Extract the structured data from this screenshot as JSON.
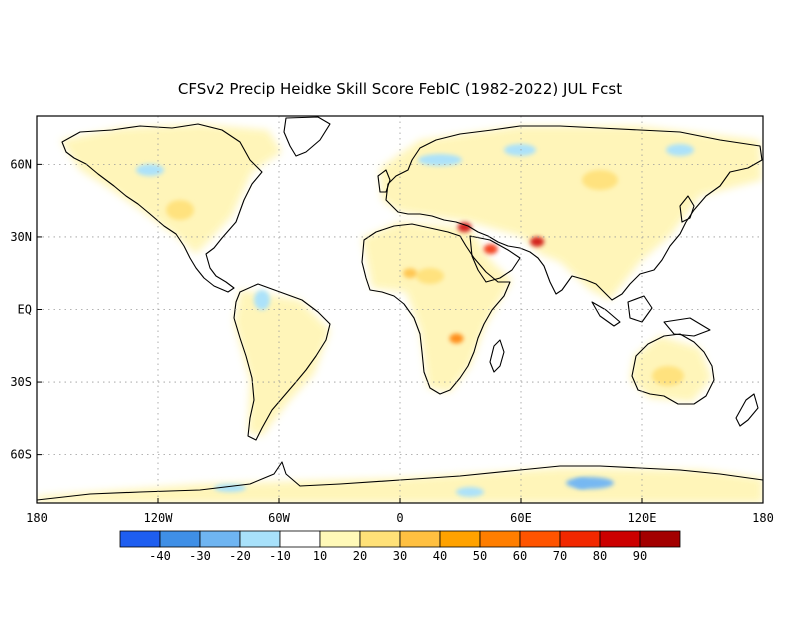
{
  "title": "CFSv2 Precip Heidke Skill Score FebIC (1982-2022) JUL Fcst",
  "map": {
    "projection": "equirectangular",
    "lon_range": [
      -180,
      180
    ],
    "lat_range": [
      -80,
      80
    ],
    "lat_ticks": [
      {
        "lat": 60,
        "label": "60N"
      },
      {
        "lat": 30,
        "label": "30N"
      },
      {
        "lat": 0,
        "label": "EQ"
      },
      {
        "lat": -30,
        "label": "30S"
      },
      {
        "lat": -60,
        "label": "60S"
      }
    ],
    "lon_ticks": [
      {
        "lon": -180,
        "label": "180"
      },
      {
        "lon": -120,
        "label": "120W"
      },
      {
        "lon": -60,
        "label": "60W"
      },
      {
        "lon": 0,
        "label": "0"
      },
      {
        "lon": 60,
        "label": "60E"
      },
      {
        "lon": 120,
        "label": "120E"
      },
      {
        "lon": 180,
        "label": "180"
      }
    ],
    "gridlines": "dotted, every 30 degrees",
    "land_background": "mostly weak positive skill (light yellow) with scattered light-blue negative patches",
    "skill_hotspots": [
      {
        "region": "Middle East / Arabian Peninsula",
        "lon": 45,
        "lat": 25,
        "level": 70
      },
      {
        "region": "Pakistan",
        "lon": 68,
        "lat": 28,
        "level": 80
      },
      {
        "region": "Eastern Mediterranean",
        "lon": 32,
        "lat": 34,
        "level": 80
      },
      {
        "region": "Southern Africa",
        "lon": 28,
        "lat": -12,
        "level": 50
      },
      {
        "region": "Sahel",
        "lon": 5,
        "lat": 15,
        "level": 30
      },
      {
        "region": "Antarctic coast",
        "lon": 90,
        "lat": -72,
        "level": -30
      }
    ]
  },
  "colorbar": {
    "colors": [
      "#1e5ef0",
      "#3f8fe6",
      "#6fb5f2",
      "#a8e1fa",
      "#ffffff",
      "#fff9b8",
      "#ffe178",
      "#ffc041",
      "#ffa200",
      "#ff7e00",
      "#ff5400",
      "#f22800",
      "#cc0000",
      "#a30000"
    ],
    "labels": [
      "-40",
      "-30",
      "-20",
      "-10",
      "10",
      "20",
      "30",
      "40",
      "50",
      "60",
      "70",
      "80",
      "90"
    ]
  }
}
